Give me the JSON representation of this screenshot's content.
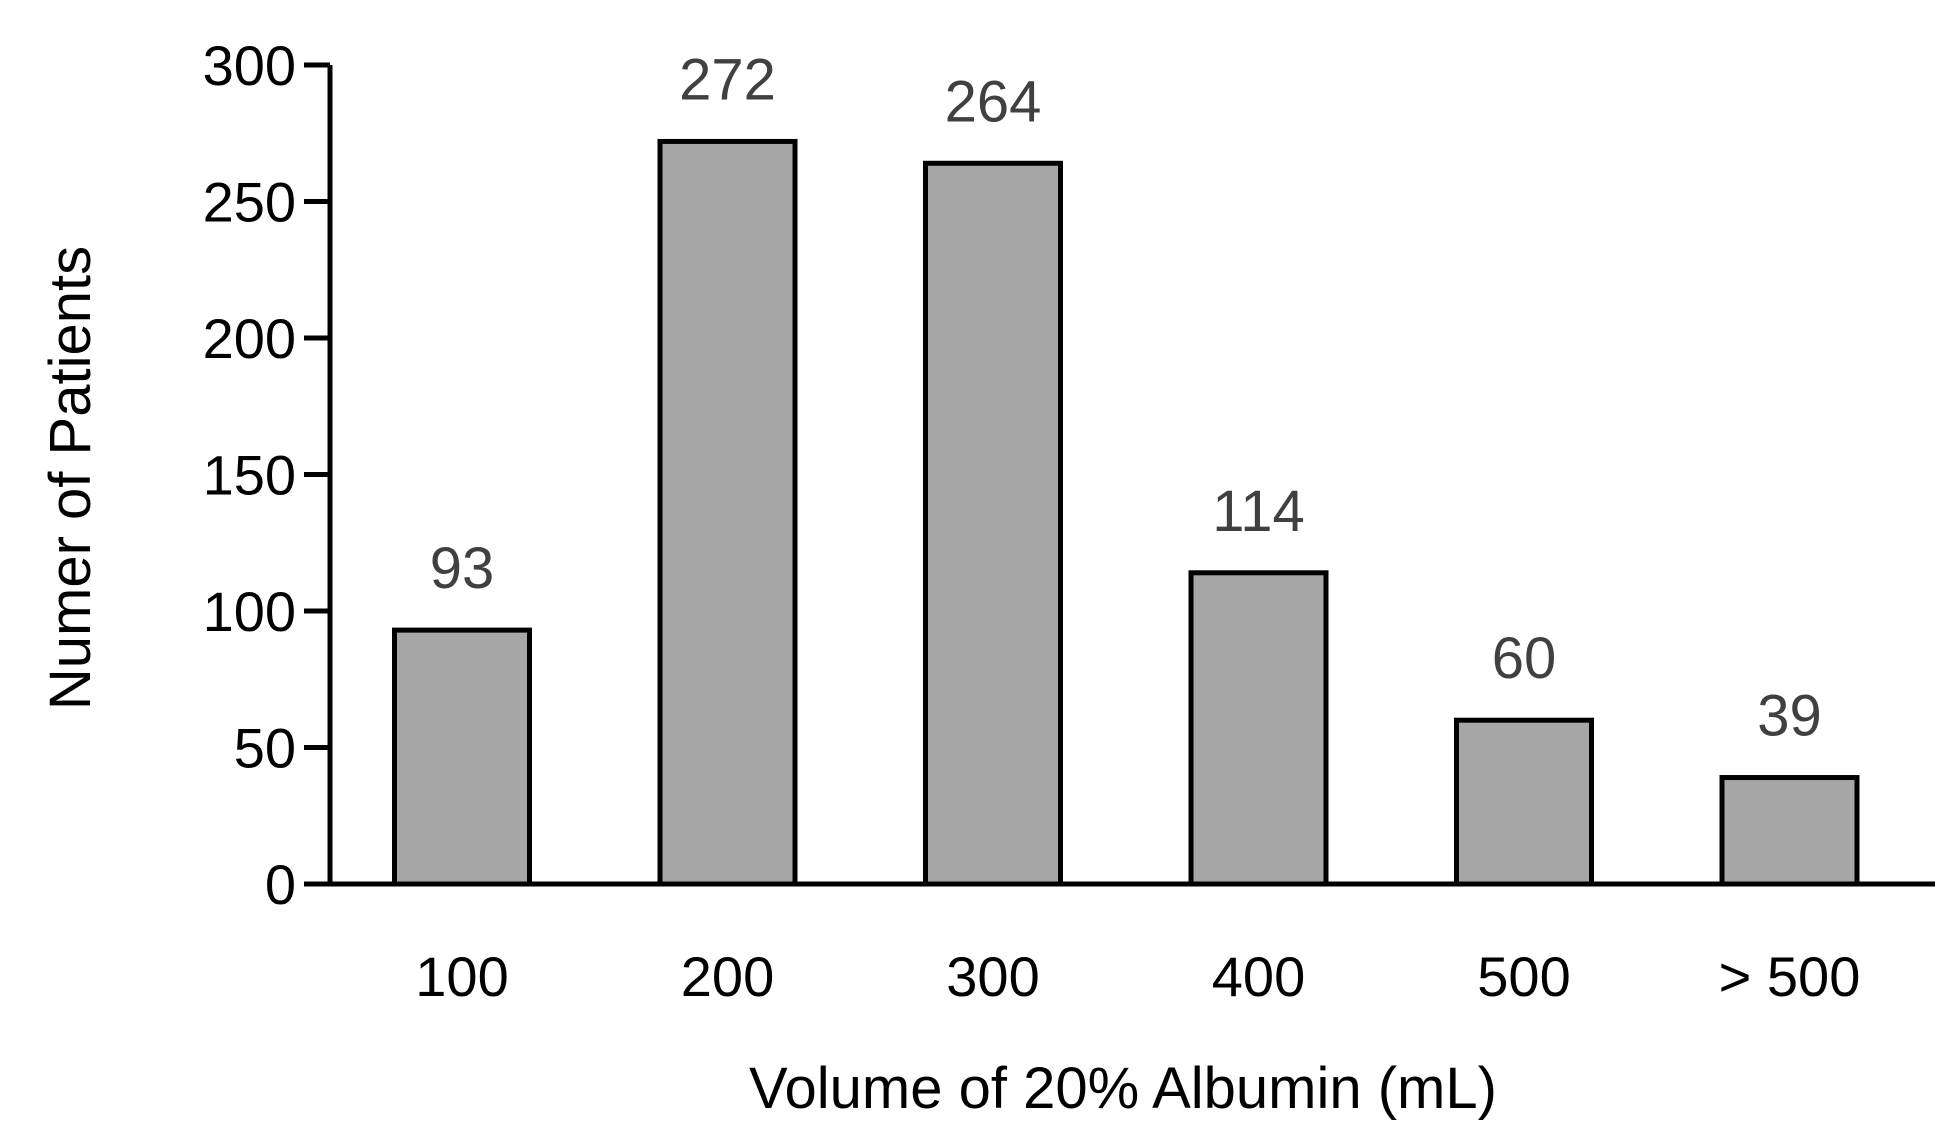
{
  "chart_data": {
    "type": "bar",
    "title": "",
    "xlabel": "Volume of 20% Albumin (mL)",
    "ylabel": "Numer of Patients",
    "categories": [
      "100",
      "200",
      "300",
      "400",
      "500",
      "> 500"
    ],
    "values": [
      93,
      272,
      264,
      114,
      60,
      39
    ],
    "data_labels": [
      "93",
      "272",
      "264",
      "114",
      "60",
      "39"
    ],
    "ylim": [
      0,
      300
    ],
    "yticks": [
      "0",
      "50",
      "100",
      "150",
      "200",
      "250",
      "300"
    ],
    "grid": false,
    "legend": "none",
    "colors": {
      "bar_fill": "#a6a6a6",
      "bar_edge": "#000000",
      "data_label": "#404040"
    }
  }
}
